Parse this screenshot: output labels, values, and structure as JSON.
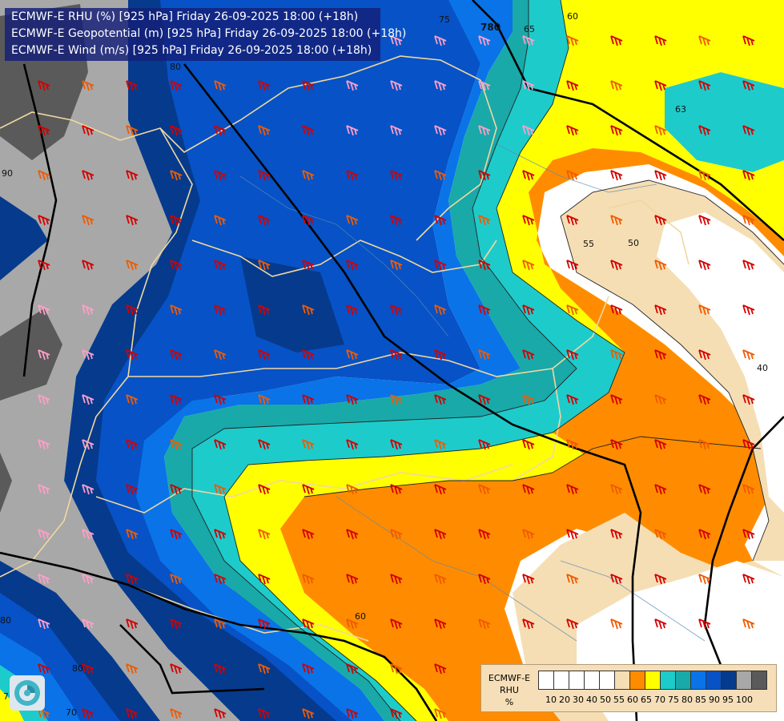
{
  "header": {
    "lines": [
      "ECMWF-E RHU (%) [925 hPa] Friday 26-09-2025 18:00 (+18h)",
      "ECMWF-E Geopotential (m) [925 hPa] Friday 26-09-2025 18:00 (+18h)",
      "ECMWF-E Wind (m/s) [925 hPa] Friday 26-09-2025 18:00 (+18h)"
    ]
  },
  "contour_labels": [
    "75",
    "65",
    "60",
    "63",
    "780",
    "80",
    "55",
    "50",
    "40",
    "60",
    "70",
    "80",
    "90",
    "80",
    "70"
  ],
  "legend": {
    "title_lines": [
      "ECMWF-E",
      "RHU",
      "%"
    ],
    "ticks": [
      "10",
      "20",
      "30",
      "40",
      "50",
      "55",
      "60",
      "65",
      "70",
      "75",
      "80",
      "85",
      "90",
      "95",
      "100"
    ],
    "colors": [
      "#ffffff",
      "#ffffff",
      "#ffffff",
      "#ffffff",
      "#ffffff",
      "#f5deb3",
      "#ff8c00",
      "#ffff00",
      "#1ecbcb",
      "#19a9a9",
      "#0a73e8",
      "#0752c6",
      "#063a8c",
      "#a8a8a8",
      "#5a5a5a"
    ]
  },
  "colors": {
    "rh_50_55": "#f5deb3",
    "rh_55_60": "#ff8c00",
    "rh_60_65": "#ffff00",
    "rh_65_70": "#1ecbcb",
    "rh_70_75": "#19a9a9",
    "rh_75_80": "#0a73e8",
    "rh_80_85": "#0752c6",
    "rh_85_90": "#063a8c",
    "rh_90_95": "#a8a8a8",
    "rh_95_100": "#5a5a5a",
    "wind_barb_strong": "#d40000",
    "wind_barb_moderate": "#f05a00",
    "wind_barb_light": "#ff9ec7"
  }
}
